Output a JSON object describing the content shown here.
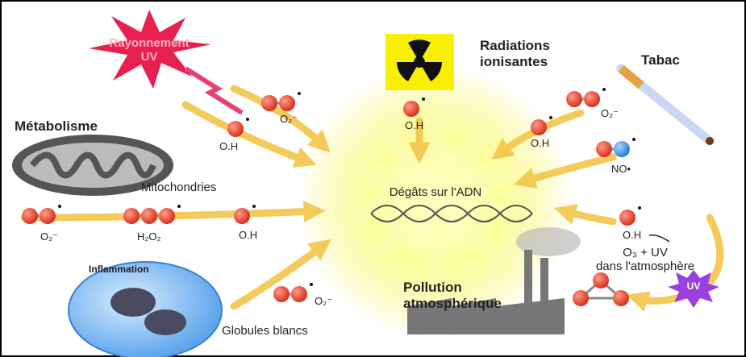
{
  "sources": {
    "uv": [
      "Rayonnement",
      "UV"
    ],
    "radiation": [
      "Radiations",
      "ionisantes"
    ],
    "tobacco": "Tabac",
    "metabolism": "Métabolisme",
    "mitochondria": "Mitochondries",
    "inflammation": "Inflammation",
    "white_cells": "Globules blancs",
    "pollution": [
      "Pollution",
      "atmosphérique"
    ],
    "ozone": [
      "O₃ + UV",
      "dans l'atmosphère"
    ],
    "uv_badge": "UV"
  },
  "center": "Dégâts sur l'ADN",
  "molecules": [
    "O₂⁻",
    "O.H",
    "O.H",
    "O₂⁻",
    "O.H",
    "NO•",
    "O₂⁻",
    "H₂O₂",
    "O.H",
    "O.H",
    "O₂⁻"
  ]
}
